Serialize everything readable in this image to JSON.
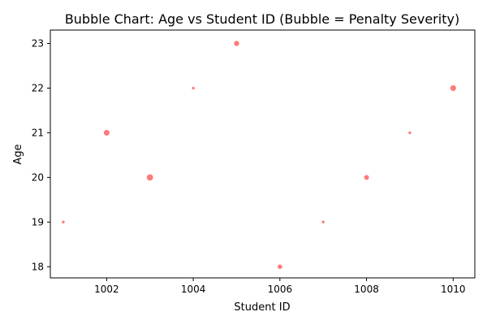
{
  "chart_data": {
    "type": "scatter",
    "title": "Bubble Chart: Age vs Student ID (Bubble = Penalty Severity)",
    "xlabel": "Student ID",
    "ylabel": "Age",
    "xlim": [
      1000.7,
      1010.5
    ],
    "ylim": [
      17.75,
      23.3
    ],
    "xticks": [
      1002,
      1004,
      1006,
      1008,
      1010
    ],
    "yticks": [
      18,
      19,
      20,
      21,
      22,
      23
    ],
    "grid": false,
    "bubble_color": "#ff7b7b",
    "points": [
      {
        "x": 1001,
        "y": 19,
        "size": 1
      },
      {
        "x": 1002,
        "y": 21,
        "size": 5
      },
      {
        "x": 1003,
        "y": 20,
        "size": 6
      },
      {
        "x": 1004,
        "y": 22,
        "size": 1
      },
      {
        "x": 1005,
        "y": 23,
        "size": 4
      },
      {
        "x": 1006,
        "y": 18,
        "size": 3
      },
      {
        "x": 1007,
        "y": 19,
        "size": 1
      },
      {
        "x": 1008,
        "y": 20,
        "size": 3.5
      },
      {
        "x": 1009,
        "y": 21,
        "size": 1
      },
      {
        "x": 1010,
        "y": 22,
        "size": 5
      }
    ]
  }
}
